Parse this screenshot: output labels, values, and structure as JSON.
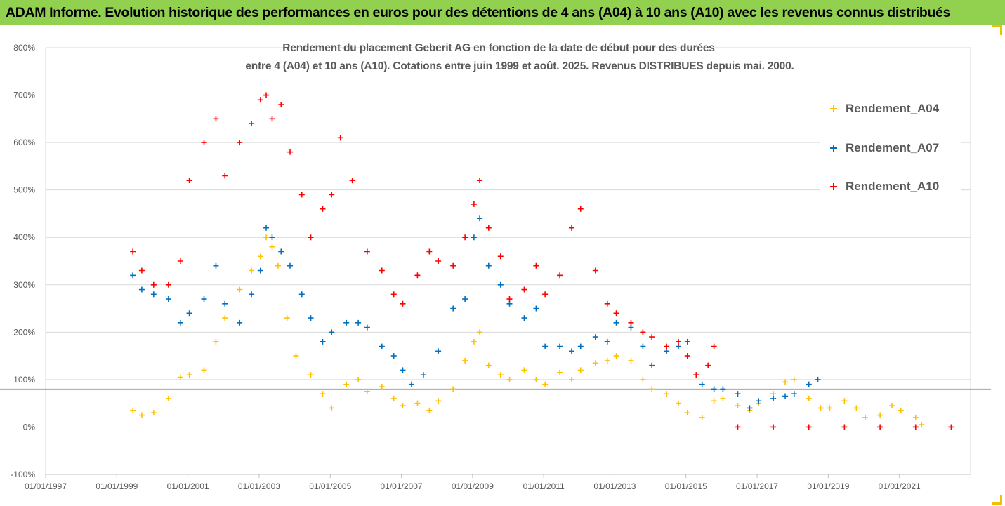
{
  "header": {
    "banner_text": "ADAM Informe. Evolution historique des performances en euros pour des détentions de 4 ans (A04) à 10 ans (A10) avec les revenus connus distribués"
  },
  "chart_data": {
    "type": "scatter",
    "title_line1": "Rendement du placement Geberit AG en fonction de la date de début pour des durées",
    "title_line2": "entre 4 (A04) et 10 ans (A10). Cotations entre juin 1999 et août. 2025. Revenus DISTRIBUES depuis mai. 2000.",
    "xlabel": "",
    "ylabel": "",
    "x_tick_labels": [
      "01/01/1997",
      "01/01/1999",
      "01/01/2001",
      "01/01/2003",
      "01/01/2005",
      "01/01/2007",
      "01/01/2009",
      "01/01/2011",
      "01/01/2013",
      "01/01/2015",
      "01/01/2017",
      "01/01/2019",
      "01/01/2021"
    ],
    "y_tick_labels": [
      "-100%",
      "0%",
      "100%",
      "200%",
      "300%",
      "400%",
      "500%",
      "600%",
      "700%",
      "800%"
    ],
    "xlim": [
      "1997-01-01",
      "2022-12-31"
    ],
    "ylim": [
      -100,
      800
    ],
    "grid": "horizontal",
    "legend_position": "right",
    "reference_line_y": 80,
    "series": [
      {
        "name": "Rendement_A04",
        "color": "#ffc000",
        "x": [
          "1999-06",
          "1999-09",
          "2000-01",
          "2000-06",
          "2000-10",
          "2001-01",
          "2001-06",
          "2001-10",
          "2002-01",
          "2002-06",
          "2002-10",
          "2003-01",
          "2003-03",
          "2003-05",
          "2003-07",
          "2003-10",
          "2004-01",
          "2004-06",
          "2004-10",
          "2005-01",
          "2005-06",
          "2005-10",
          "2006-01",
          "2006-06",
          "2006-10",
          "2007-01",
          "2007-06",
          "2007-10",
          "2008-01",
          "2008-06",
          "2008-10",
          "2009-01",
          "2009-03",
          "2009-06",
          "2009-10",
          "2010-01",
          "2010-06",
          "2010-10",
          "2011-01",
          "2011-06",
          "2011-10",
          "2012-01",
          "2012-06",
          "2012-10",
          "2013-01",
          "2013-06",
          "2013-10",
          "2014-01",
          "2014-06",
          "2014-10",
          "2015-01",
          "2015-06",
          "2015-10",
          "2016-01",
          "2016-06",
          "2016-10",
          "2017-01",
          "2017-06",
          "2017-10",
          "2018-01",
          "2018-06",
          "2018-10",
          "2019-01",
          "2019-06",
          "2019-10",
          "2020-01",
          "2020-06",
          "2020-10",
          "2021-01",
          "2021-06",
          "2021-08"
        ],
        "y": [
          35,
          25,
          30,
          60,
          105,
          110,
          120,
          180,
          230,
          290,
          330,
          360,
          400,
          380,
          340,
          230,
          150,
          110,
          70,
          40,
          90,
          100,
          75,
          85,
          60,
          45,
          50,
          35,
          55,
          80,
          140,
          180,
          200,
          130,
          110,
          100,
          120,
          100,
          90,
          115,
          100,
          120,
          135,
          140,
          150,
          140,
          100,
          80,
          70,
          50,
          30,
          20,
          55,
          60,
          45,
          35,
          50,
          70,
          95,
          100,
          60,
          40,
          40,
          55,
          40,
          20,
          25,
          45,
          35,
          20,
          5
        ]
      },
      {
        "name": "Rendement_A07",
        "color": "#0070c0",
        "x": [
          "1999-06",
          "1999-09",
          "2000-01",
          "2000-06",
          "2000-10",
          "2001-01",
          "2001-06",
          "2001-10",
          "2002-01",
          "2002-06",
          "2002-10",
          "2003-01",
          "2003-03",
          "2003-05",
          "2003-08",
          "2003-11",
          "2004-03",
          "2004-06",
          "2004-10",
          "2005-01",
          "2005-06",
          "2005-10",
          "2006-01",
          "2006-06",
          "2006-10",
          "2007-01",
          "2007-04",
          "2007-08",
          "2008-01",
          "2008-06",
          "2008-10",
          "2009-01",
          "2009-03",
          "2009-06",
          "2009-10",
          "2010-01",
          "2010-06",
          "2010-10",
          "2011-01",
          "2011-06",
          "2011-10",
          "2012-01",
          "2012-06",
          "2012-10",
          "2013-01",
          "2013-06",
          "2013-10",
          "2014-01",
          "2014-06",
          "2014-10",
          "2015-01",
          "2015-06",
          "2015-10",
          "2016-01",
          "2016-06",
          "2016-10",
          "2017-01",
          "2017-06",
          "2017-10",
          "2018-01",
          "2018-06",
          "2018-09"
        ],
        "y": [
          320,
          290,
          280,
          270,
          220,
          240,
          270,
          340,
          260,
          220,
          280,
          330,
          420,
          400,
          370,
          340,
          280,
          230,
          180,
          200,
          220,
          220,
          210,
          170,
          150,
          120,
          90,
          110,
          160,
          250,
          270,
          400,
          440,
          340,
          300,
          260,
          230,
          250,
          170,
          170,
          160,
          170,
          190,
          180,
          220,
          210,
          170,
          130,
          160,
          170,
          180,
          90,
          80,
          80,
          70,
          40,
          55,
          60,
          65,
          70,
          90,
          100
        ]
      },
      {
        "name": "Rendement_A10",
        "color": "#ff0000",
        "x": [
          "1999-06",
          "1999-09",
          "2000-01",
          "2000-06",
          "2000-10",
          "2001-01",
          "2001-06",
          "2001-10",
          "2002-01",
          "2002-06",
          "2002-10",
          "2003-01",
          "2003-03",
          "2003-05",
          "2003-08",
          "2003-11",
          "2004-03",
          "2004-06",
          "2004-10",
          "2005-01",
          "2005-04",
          "2005-08",
          "2006-01",
          "2006-06",
          "2006-10",
          "2007-01",
          "2007-06",
          "2007-10",
          "2008-01",
          "2008-06",
          "2008-10",
          "2009-01",
          "2009-03",
          "2009-06",
          "2009-10",
          "2010-01",
          "2010-06",
          "2010-10",
          "2011-01",
          "2011-06",
          "2011-10",
          "2012-01",
          "2012-06",
          "2012-10",
          "2013-01",
          "2013-06",
          "2013-10",
          "2014-01",
          "2014-06",
          "2014-10",
          "2015-01",
          "2015-04",
          "2015-08",
          "2015-10",
          "2016-06",
          "2017-06",
          "2018-06",
          "2019-06",
          "2020-06",
          "2021-06",
          "2022-06"
        ],
        "y": [
          370,
          330,
          300,
          300,
          350,
          520,
          600,
          650,
          530,
          600,
          640,
          690,
          700,
          650,
          680,
          580,
          490,
          400,
          460,
          490,
          610,
          520,
          370,
          330,
          280,
          260,
          320,
          370,
          350,
          340,
          400,
          470,
          520,
          420,
          360,
          270,
          290,
          340,
          280,
          320,
          420,
          460,
          330,
          260,
          240,
          220,
          200,
          190,
          170,
          180,
          150,
          110,
          130,
          170,
          0,
          0,
          0,
          0,
          0,
          0,
          0
        ]
      }
    ]
  }
}
